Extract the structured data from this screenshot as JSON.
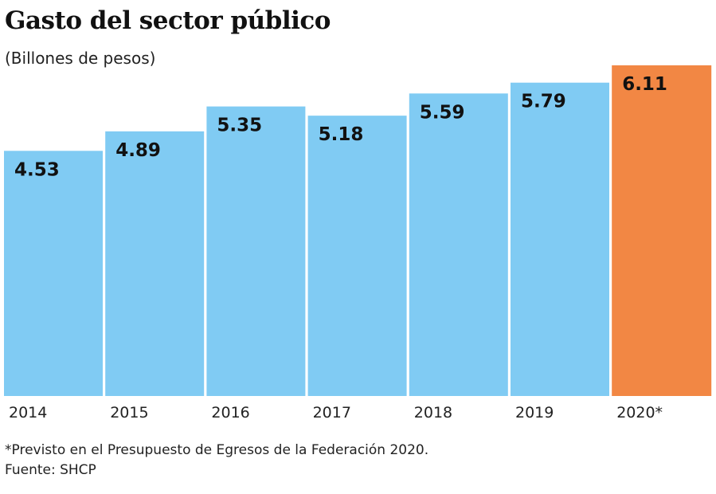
{
  "chart_data": {
    "type": "bar",
    "title": "Gasto del sector público",
    "subtitle": "(Billones de pesos)",
    "categories": [
      "2014",
      "2015",
      "2016",
      "2017",
      "2018",
      "2019",
      "2020*"
    ],
    "values": [
      4.53,
      4.89,
      5.35,
      5.18,
      5.59,
      5.79,
      6.11
    ],
    "value_labels": [
      "4.53",
      "4.89",
      "5.35",
      "5.18",
      "5.59",
      "5.79",
      "6.11"
    ],
    "highlight_index": 6,
    "xlabel": "",
    "ylabel": "",
    "ylim": [
      0,
      6.11
    ],
    "grid": false,
    "colors": {
      "bar": "#80CBF3",
      "highlight": "#F28744"
    },
    "note": "*Previsto en el Presupuesto de Egresos de la Federación 2020.",
    "source": "Fuente: SHCP"
  }
}
